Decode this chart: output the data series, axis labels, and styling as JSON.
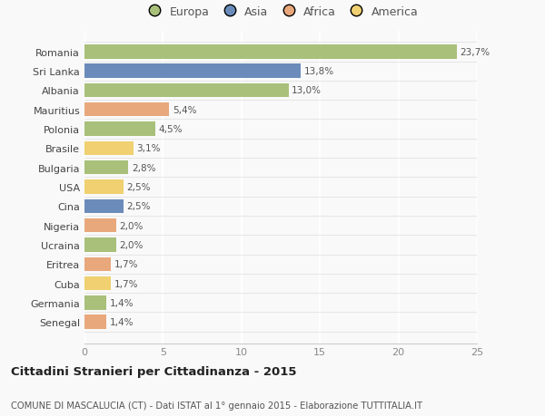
{
  "categories": [
    "Romania",
    "Sri Lanka",
    "Albania",
    "Mauritius",
    "Polonia",
    "Brasile",
    "Bulgaria",
    "USA",
    "Cina",
    "Nigeria",
    "Ucraina",
    "Eritrea",
    "Cuba",
    "Germania",
    "Senegal"
  ],
  "values": [
    23.7,
    13.8,
    13.0,
    5.4,
    4.5,
    3.1,
    2.8,
    2.5,
    2.5,
    2.0,
    2.0,
    1.7,
    1.7,
    1.4,
    1.4
  ],
  "labels": [
    "23,7%",
    "13,8%",
    "13,0%",
    "5,4%",
    "4,5%",
    "3,1%",
    "2,8%",
    "2,5%",
    "2,5%",
    "2,0%",
    "2,0%",
    "1,7%",
    "1,7%",
    "1,4%",
    "1,4%"
  ],
  "colors": [
    "#a8c07a",
    "#6b8cba",
    "#a8c07a",
    "#e8a87c",
    "#a8c07a",
    "#f0d070",
    "#a8c07a",
    "#f0d070",
    "#6b8cba",
    "#e8a87c",
    "#a8c07a",
    "#e8a87c",
    "#f0d070",
    "#a8c07a",
    "#e8a87c"
  ],
  "legend_labels": [
    "Europa",
    "Asia",
    "Africa",
    "America"
  ],
  "legend_colors": [
    "#a8c07a",
    "#6b8cba",
    "#e8a87c",
    "#f0d070"
  ],
  "title": "Cittadini Stranieri per Cittadinanza - 2015",
  "subtitle": "COMUNE DI MASCALUCIA (CT) - Dati ISTAT al 1° gennaio 2015 - Elaborazione TUTTITALIA.IT",
  "xlim": [
    0,
    25
  ],
  "xticks": [
    0,
    5,
    10,
    15,
    20,
    25
  ],
  "background_color": "#f9f9f9",
  "bar_height": 0.72
}
